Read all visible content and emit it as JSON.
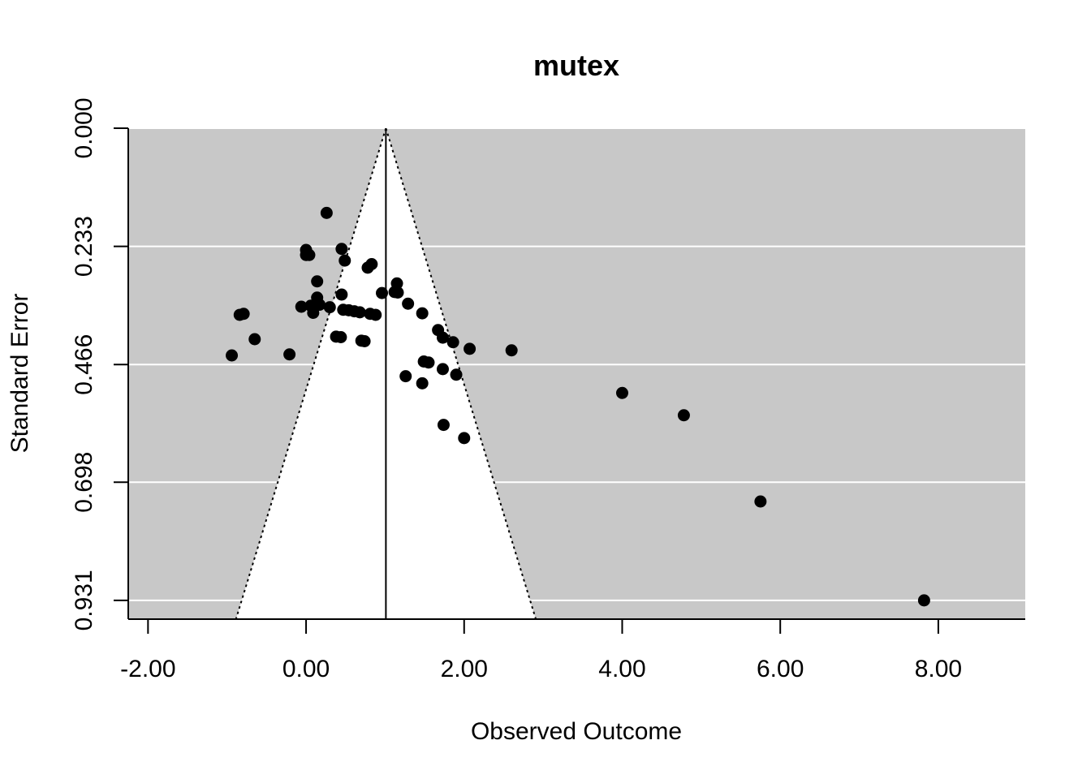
{
  "chart_data": {
    "type": "scatter",
    "subtype": "funnel",
    "title": "mutex",
    "xlabel": "Observed Outcome",
    "ylabel": "Standard Error",
    "xlim": [
      -2.25,
      9.1
    ],
    "ylim": [
      0.0,
      0.968
    ],
    "y_reversed": true,
    "x_ticks": [
      -2,
      0,
      2,
      4,
      6,
      8
    ],
    "x_tick_labels": [
      "-2.00",
      "0.00",
      "2.00",
      "4.00",
      "6.00",
      "8.00"
    ],
    "y_ticks": [
      0.0,
      0.233,
      0.466,
      0.698,
      0.931
    ],
    "y_tick_labels": [
      "0.000",
      "0.233",
      "0.466",
      "0.698",
      "0.931"
    ],
    "pooled_estimate": 1.01,
    "funnel_z": 1.96,
    "background_color": "#c8c8c8",
    "funnel_fill": "#ffffff",
    "gridline_color": "#ffffff",
    "point_color": "#000000",
    "points": [
      {
        "x": 0.26,
        "y": 0.167
      },
      {
        "x": 0.0,
        "y": 0.24
      },
      {
        "x": 0.45,
        "y": 0.238
      },
      {
        "x": 0.0,
        "y": 0.25
      },
      {
        "x": 0.04,
        "y": 0.25
      },
      {
        "x": 0.49,
        "y": 0.261
      },
      {
        "x": 0.83,
        "y": 0.268
      },
      {
        "x": 0.78,
        "y": 0.275
      },
      {
        "x": 0.14,
        "y": 0.302
      },
      {
        "x": 1.15,
        "y": 0.306
      },
      {
        "x": 1.12,
        "y": 0.323
      },
      {
        "x": 1.16,
        "y": 0.324
      },
      {
        "x": 0.96,
        "y": 0.325
      },
      {
        "x": 0.45,
        "y": 0.328
      },
      {
        "x": 0.14,
        "y": 0.334
      },
      {
        "x": 1.29,
        "y": 0.346
      },
      {
        "x": -0.06,
        "y": 0.352
      },
      {
        "x": 0.06,
        "y": 0.35
      },
      {
        "x": 0.17,
        "y": 0.348
      },
      {
        "x": 0.3,
        "y": 0.353
      },
      {
        "x": 0.47,
        "y": 0.358
      },
      {
        "x": 0.54,
        "y": 0.359
      },
      {
        "x": 0.61,
        "y": 0.361
      },
      {
        "x": 0.68,
        "y": 0.363
      },
      {
        "x": 0.81,
        "y": 0.366
      },
      {
        "x": 0.88,
        "y": 0.368
      },
      {
        "x": 0.09,
        "y": 0.364
      },
      {
        "x": -0.79,
        "y": 0.366
      },
      {
        "x": -0.84,
        "y": 0.368
      },
      {
        "x": 1.47,
        "y": 0.365
      },
      {
        "x": 1.67,
        "y": 0.398
      },
      {
        "x": 1.73,
        "y": 0.413
      },
      {
        "x": 1.86,
        "y": 0.422
      },
      {
        "x": 0.38,
        "y": 0.411
      },
      {
        "x": 0.44,
        "y": 0.412
      },
      {
        "x": 0.7,
        "y": 0.419
      },
      {
        "x": 0.74,
        "y": 0.42
      },
      {
        "x": -0.65,
        "y": 0.416
      },
      {
        "x": 2.07,
        "y": 0.435
      },
      {
        "x": 2.6,
        "y": 0.438
      },
      {
        "x": -0.21,
        "y": 0.446
      },
      {
        "x": -0.94,
        "y": 0.448
      },
      {
        "x": 1.49,
        "y": 0.46
      },
      {
        "x": 1.55,
        "y": 0.462
      },
      {
        "x": 1.73,
        "y": 0.475
      },
      {
        "x": 1.9,
        "y": 0.486
      },
      {
        "x": 1.26,
        "y": 0.489
      },
      {
        "x": 1.47,
        "y": 0.503
      },
      {
        "x": 4.0,
        "y": 0.522
      },
      {
        "x": 4.78,
        "y": 0.566
      },
      {
        "x": 1.74,
        "y": 0.585
      },
      {
        "x": 2.0,
        "y": 0.611
      },
      {
        "x": 5.75,
        "y": 0.736
      },
      {
        "x": 7.82,
        "y": 0.931
      }
    ]
  }
}
